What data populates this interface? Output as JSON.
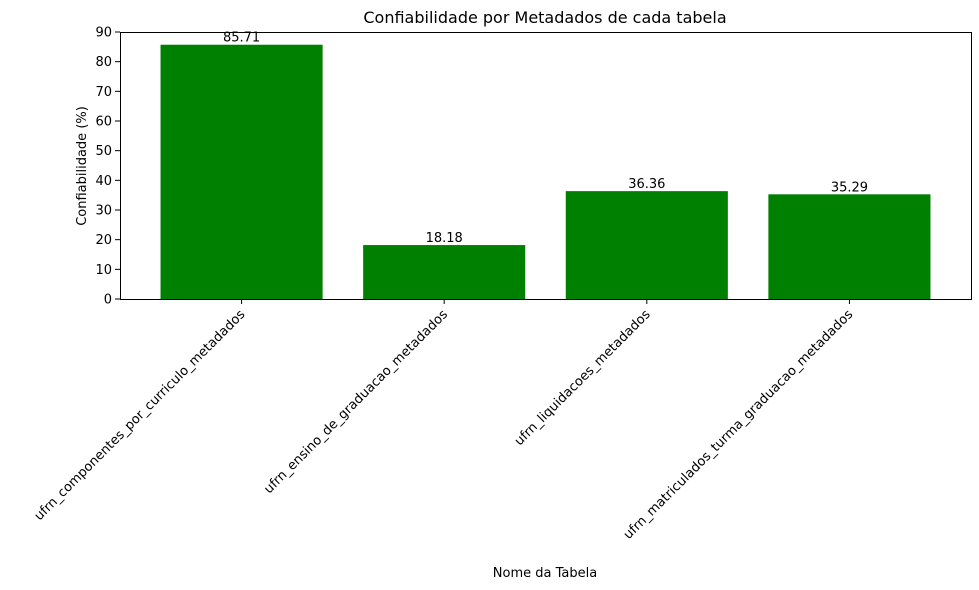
{
  "chart_data": {
    "type": "bar",
    "title": "Confiabilidade por Metadados de cada tabela",
    "xlabel": "Nome da Tabela",
    "ylabel": "Confiabilidade (%)",
    "categories": [
      "ufrn_componentes_por_curriculo_metadados",
      "ufrn_ensino_de_graduacao_metadados",
      "ufrn_liquidacoes_metadados",
      "ufrn_matriculados_turma_graduacao_metadados"
    ],
    "values": [
      85.71,
      18.18,
      36.36,
      35.29
    ],
    "data_labels": [
      "85.71",
      "18.18",
      "36.36",
      "35.29"
    ],
    "ylim": [
      0,
      90
    ],
    "yticks": [
      0,
      10,
      20,
      30,
      40,
      50,
      60,
      70,
      80,
      90
    ],
    "bar_color": "#008000",
    "grid": false,
    "legend": "none"
  }
}
